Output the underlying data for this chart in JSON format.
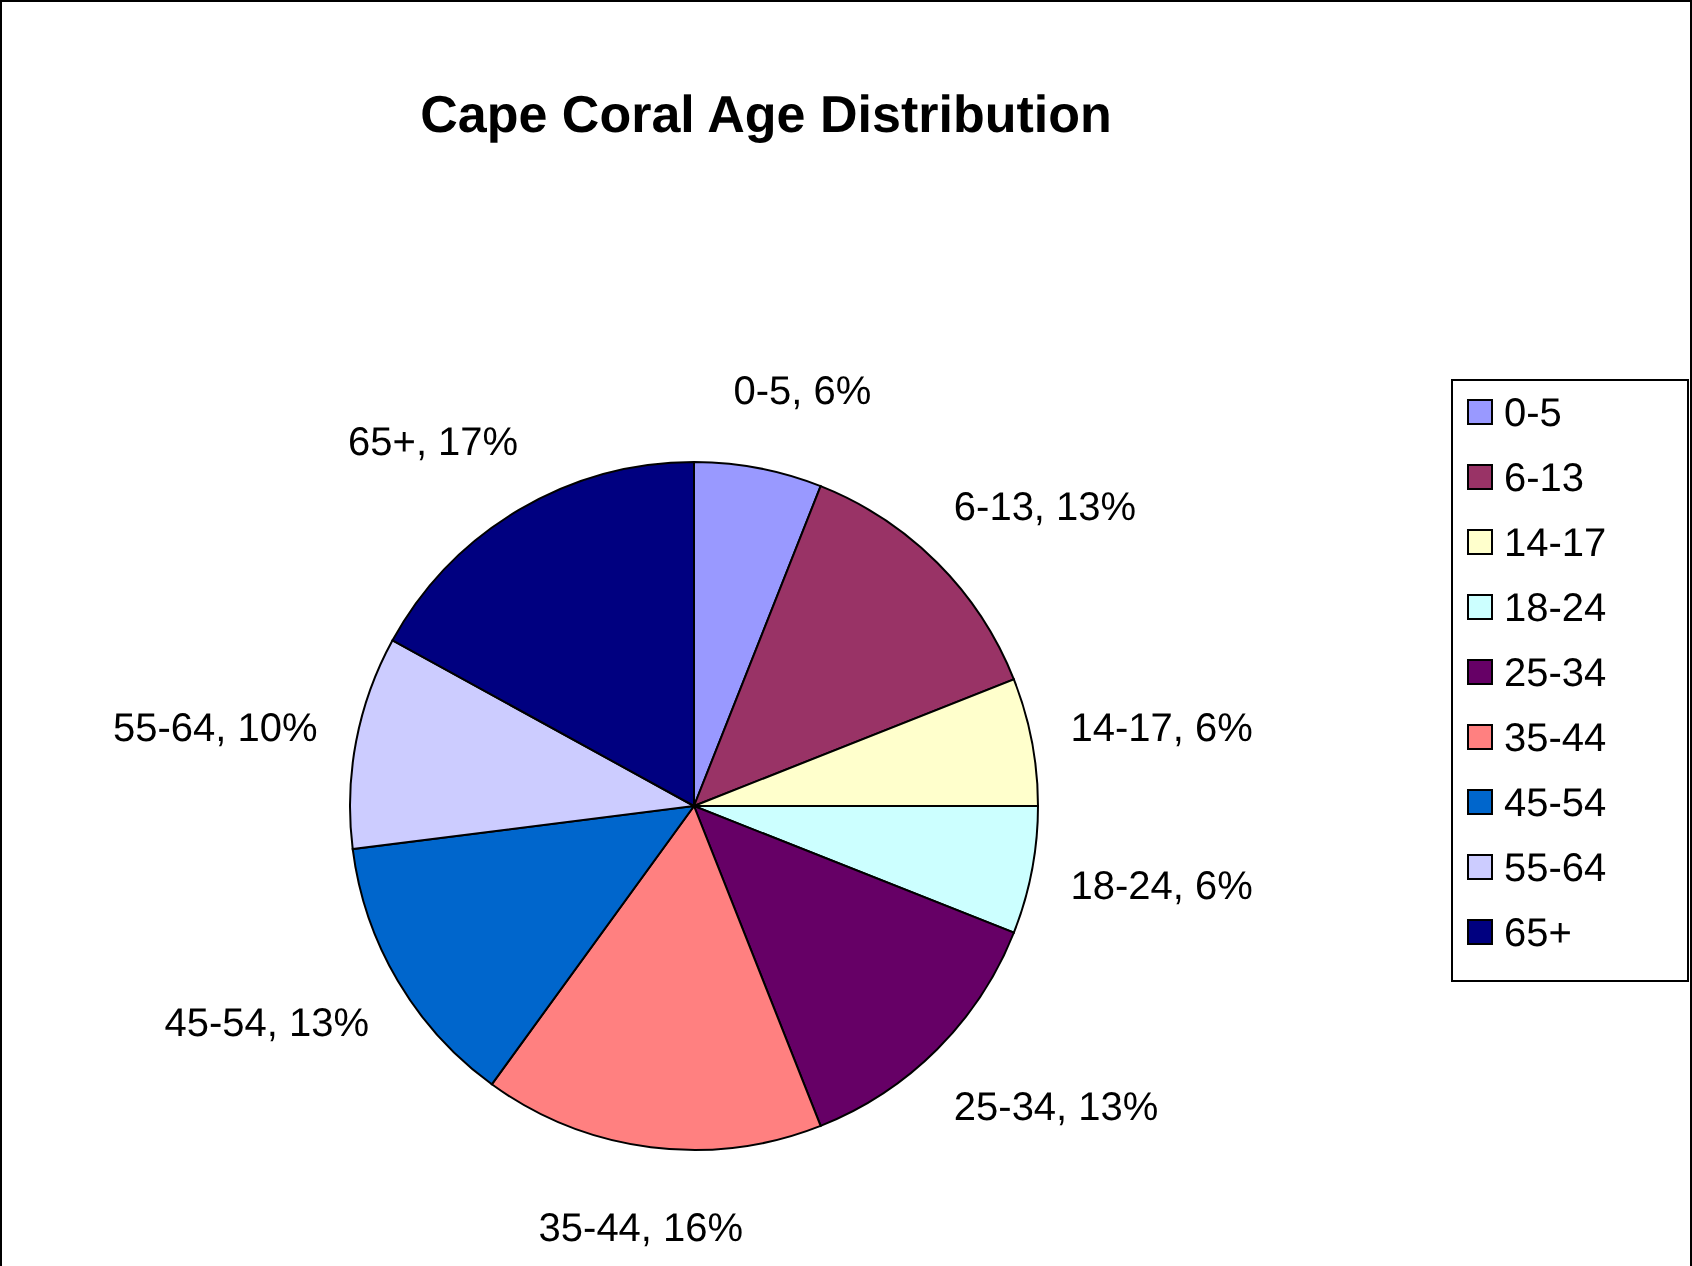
{
  "chart_data": {
    "type": "pie",
    "title": "Cape Coral Age Distribution",
    "categories": [
      "0-5",
      "6-13",
      "14-17",
      "18-24",
      "25-34",
      "35-44",
      "45-54",
      "55-64",
      "65+"
    ],
    "values": [
      6,
      13,
      6,
      6,
      13,
      16,
      13,
      10,
      17
    ],
    "colors": [
      "#9999ff",
      "#993366",
      "#ffffcc",
      "#ccffff",
      "#660066",
      "#ff8080",
      "#0066cc",
      "#ccccff",
      "#000080"
    ],
    "value_labels": [
      "0-5, 6%",
      "6-13, 13%",
      "14-17, 6%",
      "18-24, 6%",
      "25-34, 13%",
      "35-44, 16%",
      "45-54, 13%",
      "55-64, 10%",
      "65+, 17%"
    ],
    "legend": "right"
  }
}
